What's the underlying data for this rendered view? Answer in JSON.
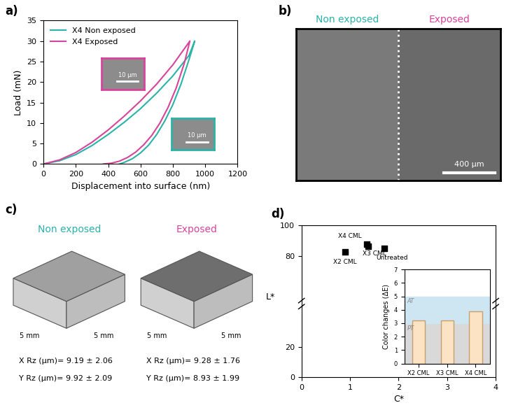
{
  "chart_data": [
    {
      "type": "line",
      "title": "a)",
      "x_label": "Displacement into surface (nm)",
      "y_label": "Load (mN)",
      "xlim": [
        0,
        1200
      ],
      "xticks": [
        0,
        200,
        400,
        600,
        800,
        1000,
        1200
      ],
      "ylim": [
        0,
        35
      ],
      "yticks": [
        0,
        5,
        10,
        15,
        20,
        25,
        30,
        35
      ],
      "legend": "upper left",
      "series": [
        {
          "name": "X4 Non exposed",
          "color": "#2ab3a8",
          "x": [
            0,
            100,
            200,
            300,
            400,
            500,
            600,
            700,
            800,
            900,
            935,
            900,
            850,
            800,
            750,
            700,
            650,
            600,
            550,
            500,
            470
          ],
          "values": [
            0,
            0.8,
            2.3,
            4.5,
            7.2,
            10.2,
            13.5,
            17.3,
            21.5,
            26.5,
            30,
            25.5,
            19.5,
            14.5,
            10.5,
            7.2,
            4.6,
            2.7,
            1.3,
            0.4,
            0
          ]
        },
        {
          "name": "X4 Exposed",
          "color": "#d6449b",
          "x": [
            0,
            100,
            200,
            300,
            400,
            500,
            600,
            700,
            800,
            905,
            870,
            820,
            770,
            720,
            670,
            620,
            570,
            520,
            470,
            420,
            370
          ],
          "values": [
            0,
            1.0,
            2.8,
            5.3,
            8.3,
            11.7,
            15.4,
            19.5,
            24.2,
            30,
            24.5,
            18.5,
            13.8,
            10.0,
            7.0,
            4.7,
            2.9,
            1.6,
            0.7,
            0.2,
            0
          ]
        }
      ],
      "annotations": [
        {
          "text": "10 µm",
          "color": "#d6449b"
        },
        {
          "text": "10 µm",
          "color": "#2ab3a8"
        }
      ]
    },
    {
      "type": "image",
      "title": "b)",
      "annotations": [
        {
          "text": "Non exposed",
          "color": "#2ab3a8"
        },
        {
          "text": "Exposed",
          "color": "#d6449b"
        },
        {
          "text": "400 µm",
          "color": "#ffffff"
        }
      ]
    },
    {
      "type": "surface",
      "title": "c)",
      "panels": [
        {
          "title": "Non exposed",
          "color": "#2ab3a8",
          "axis_labels": [
            "5 mm",
            "5 mm"
          ],
          "annotations": [
            "X Rz (µm)= 9.19 ± 2.06",
            "Y Rz (µm)= 9.92 ± 2.09"
          ]
        },
        {
          "title": "Exposed",
          "color": "#d6449b",
          "axis_labels": [
            "5 mm",
            "5 mm"
          ],
          "annotations": [
            "X Rz (µm)= 9.28 ± 1.76",
            "Y Rz (µm)= 8.93 ± 1.99"
          ]
        }
      ]
    },
    {
      "type": "scatter",
      "title": "d)",
      "x_label": "C*",
      "y_label": "L*",
      "xlim": [
        0,
        4
      ],
      "xticks": [
        0,
        1,
        2,
        3,
        4
      ],
      "ylim": [
        0,
        100
      ],
      "yticks": [
        0,
        20,
        80,
        100
      ],
      "marker": "square",
      "color": "#000000",
      "categories": [
        "X2 CML",
        "X3 CML",
        "X4 CML",
        "Untreated"
      ],
      "x": [
        0.9,
        1.38,
        1.35,
        1.7
      ],
      "values": [
        82.5,
        86.5,
        87.8,
        85.0
      ],
      "inset": {
        "type": "bar",
        "y_label": "Color changes (ΔE)",
        "categories": [
          "X2 CML",
          "X3 CML",
          "X4 CML"
        ],
        "values": [
          3.2,
          3.2,
          3.9
        ],
        "color": "#fbe3c4",
        "ylim": [
          0,
          7
        ],
        "yticks": [
          0,
          1,
          2,
          3,
          4,
          5,
          6,
          7
        ],
        "bands": [
          {
            "label": "PT",
            "range": [
              0,
              3
            ],
            "color": "#d9d9d9"
          },
          {
            "label": "AT",
            "range": [
              3,
              5
            ],
            "color": "#cde6f2"
          }
        ]
      }
    }
  ]
}
